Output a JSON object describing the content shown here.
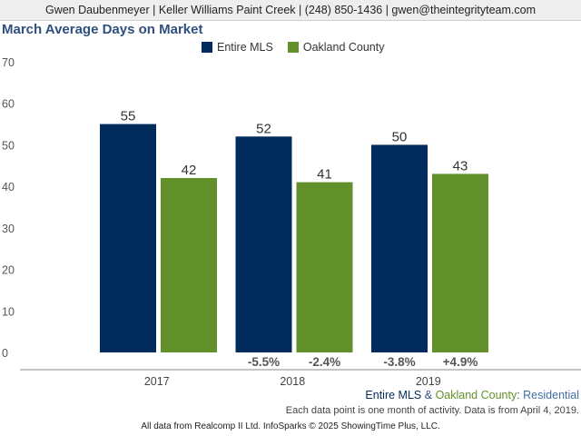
{
  "header": {
    "agent_line": "Gwen Daubenmeyer | Keller Williams Paint Creek | (248) 850-1436 | gwen@theintegrityteam.com"
  },
  "colors": {
    "entire_mls": "#002b5c",
    "oakland_county": "#62902b",
    "title": "#2f4f7f",
    "change_text": "#555555"
  },
  "chart_data": {
    "type": "bar",
    "title": "March Average Days on Market",
    "categories": [
      "2017",
      "2018",
      "2019"
    ],
    "series": [
      {
        "name": "Entire MLS",
        "values": [
          55,
          52,
          50
        ],
        "changes": [
          "",
          "-5.5%",
          "-3.8%"
        ]
      },
      {
        "name": "Oakland County",
        "values": [
          42,
          41,
          43
        ],
        "changes": [
          "",
          "-2.4%",
          "+4.9%"
        ]
      }
    ],
    "yticks": [
      0,
      10,
      20,
      30,
      40,
      50,
      60,
      70
    ],
    "ylim": [
      0,
      70
    ],
    "grid": false,
    "legend": "top-center"
  },
  "footer": {
    "series_a": "Entire MLS",
    "amp": " & ",
    "series_b": "Oakland County",
    "colon": ": ",
    "segment": "Residential",
    "note": "Each data point is one month of activity. Data is from April 4, 2019.",
    "source": "All data from Realcomp II Ltd. InfoSparks © 2025 ShowingTime Plus, LLC."
  }
}
